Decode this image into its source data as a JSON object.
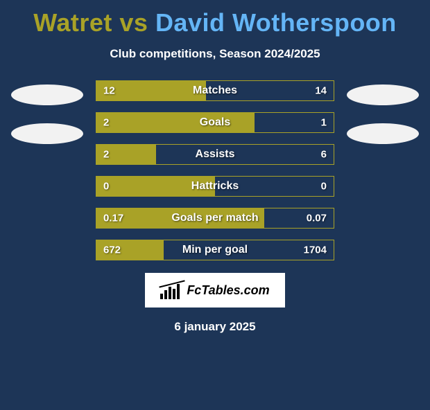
{
  "title": {
    "player1": "Watret",
    "vs": "vs",
    "player2": "David Wotherspoon"
  },
  "subtitle": "Club competitions, Season 2024/2025",
  "colors": {
    "p1": "#a9a227",
    "p2": "#64b5f6",
    "bg": "#1d3557",
    "ellipseWhite": "#f2f2f2"
  },
  "stats": [
    {
      "label": "Matches",
      "leftVal": "12",
      "rightVal": "14",
      "leftNum": 12,
      "rightNum": 14
    },
    {
      "label": "Goals",
      "leftVal": "2",
      "rightVal": "1",
      "leftNum": 2,
      "rightNum": 1
    },
    {
      "label": "Assists",
      "leftVal": "2",
      "rightVal": "6",
      "leftNum": 2,
      "rightNum": 6
    },
    {
      "label": "Hattricks",
      "leftVal": "0",
      "rightVal": "0",
      "leftNum": 0,
      "rightNum": 0
    },
    {
      "label": "Goals per match",
      "leftVal": "0.17",
      "rightVal": "0.07",
      "leftNum": 0.17,
      "rightNum": 0.07
    },
    {
      "label": "Min per goal",
      "leftVal": "672",
      "rightVal": "1704",
      "leftNum": 672,
      "rightNum": 1704
    }
  ],
  "brand": "FcTables.com",
  "date": "6 january 2025"
}
